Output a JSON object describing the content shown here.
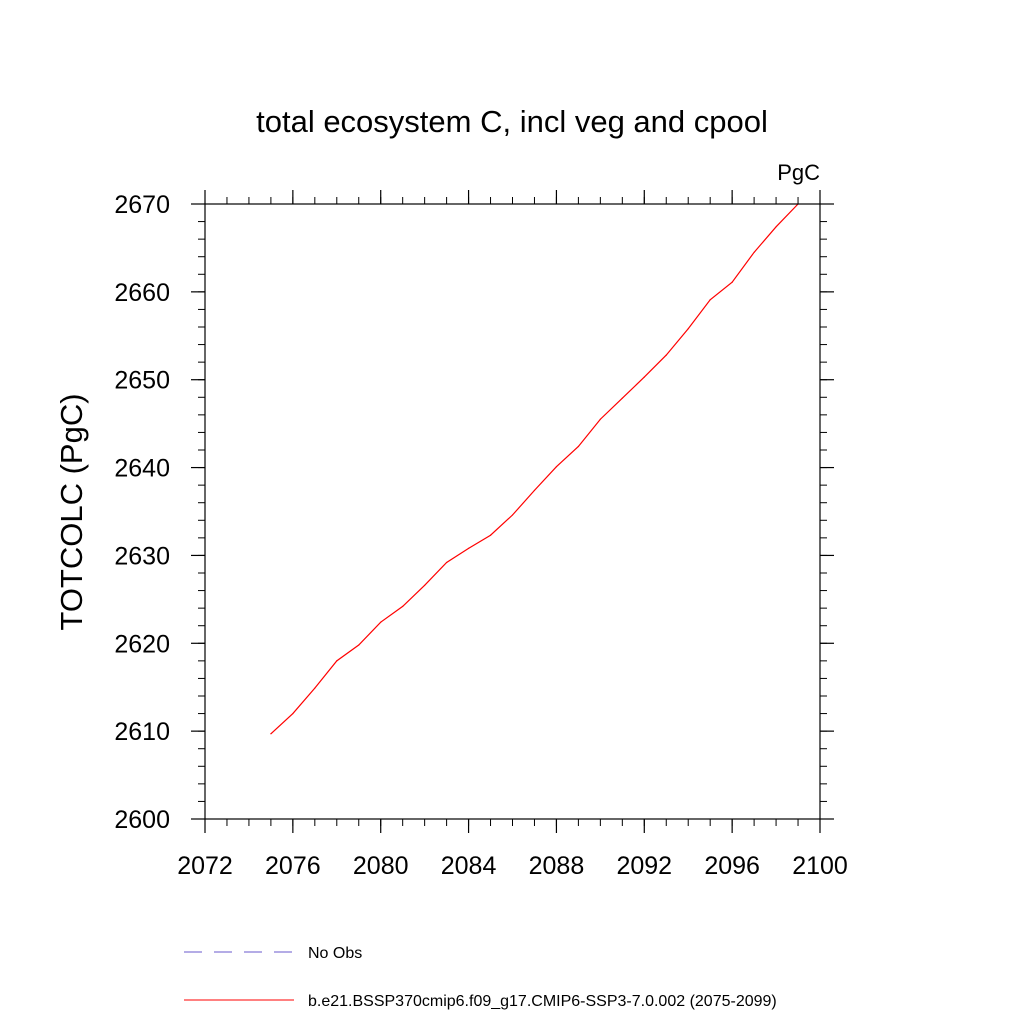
{
  "chart_data": {
    "type": "line",
    "title": "total ecosystem C, incl veg and cpool",
    "units": "PgC",
    "ylabel": "TOTCOLC  (PgC)",
    "xlabel": "",
    "xlim": [
      2072,
      2100
    ],
    "ylim": [
      2600,
      2670
    ],
    "x_ticks": [
      2072,
      2076,
      2080,
      2084,
      2088,
      2092,
      2096,
      2100
    ],
    "y_ticks": [
      2600,
      2610,
      2620,
      2630,
      2640,
      2650,
      2660,
      2670
    ],
    "x_minor_step": 1,
    "y_minor_step": 2,
    "grid": false,
    "legend_position": "bottom",
    "series": [
      {
        "name": "b.e21.BSSP370cmip6.f09_g17.CMIP6-SSP3-7.0.002 (2075-2099)",
        "color": "#ff0000",
        "style": "solid",
        "x": [
          2075,
          2076,
          2077,
          2078,
          2079,
          2080,
          2081,
          2082,
          2083,
          2084,
          2085,
          2086,
          2087,
          2088,
          2089,
          2090,
          2091,
          2092,
          2093,
          2094,
          2095,
          2096,
          2097,
          2098,
          2099
        ],
        "y": [
          2609.7,
          2612.0,
          2614.9,
          2618.0,
          2619.8,
          2622.4,
          2624.2,
          2626.6,
          2629.2,
          2630.8,
          2632.3,
          2634.6,
          2637.4,
          2640.1,
          2642.4,
          2645.5,
          2647.9,
          2650.3,
          2652.8,
          2655.8,
          2659.1,
          2661.1,
          2664.5,
          2667.4,
          2670.0
        ]
      }
    ],
    "legend": [
      {
        "label": "No Obs",
        "color": "#6a5acd",
        "style": "dashed"
      },
      {
        "label": "b.e21.BSSP370cmip6.f09_g17.CMIP6-SSP3-7.0.002 (2075-2099)",
        "color": "#ff0000",
        "style": "solid"
      }
    ]
  }
}
